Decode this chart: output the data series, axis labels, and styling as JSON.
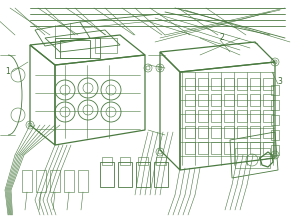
{
  "bg_color": "#ffffff",
  "fig_width": 3.0,
  "fig_height": 2.19,
  "dpi": 100,
  "image_data": "target_reproduction"
}
